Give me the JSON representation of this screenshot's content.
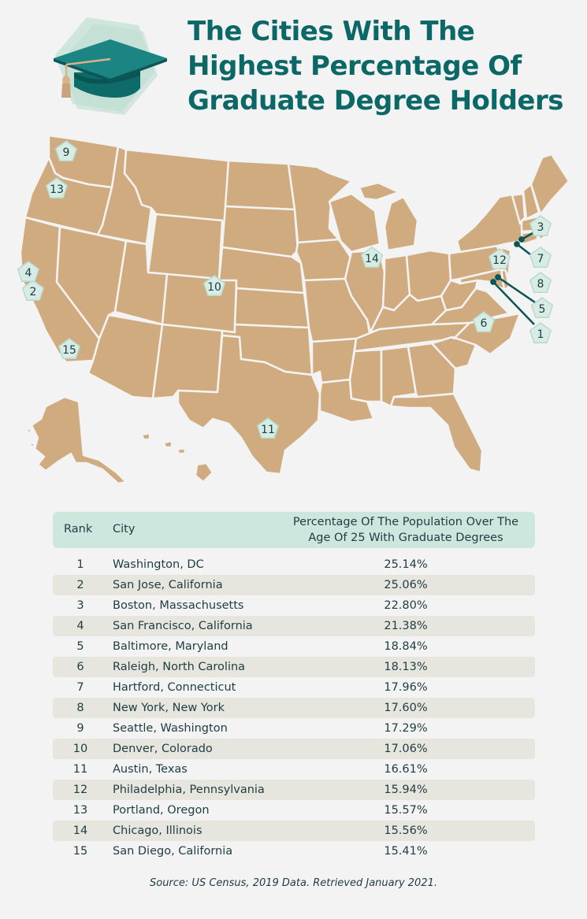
{
  "title": {
    "line1": "The Cities With The",
    "line2": "Highest Percentage Of",
    "line3": "Graduate Degree Holders"
  },
  "icons": {
    "cap": "graduation-cap-icon"
  },
  "colors": {
    "title": "#0c6866",
    "land": "#cfab7f",
    "marker_fill": "#d6ece4",
    "marker_stroke": "#b9d9cd",
    "table_header": "#cde6de",
    "row_alt": "#e6e6df"
  },
  "map_labels": [
    {
      "rank": "1",
      "city": "Washington, DC"
    },
    {
      "rank": "2",
      "city": "San Jose, California"
    },
    {
      "rank": "3",
      "city": "Boston, Massachusetts"
    },
    {
      "rank": "4",
      "city": "San Francisco, California"
    },
    {
      "rank": "5",
      "city": "Baltimore, Maryland"
    },
    {
      "rank": "6",
      "city": "Raleigh, North Carolina"
    },
    {
      "rank": "7",
      "city": "Hartford, Connecticut"
    },
    {
      "rank": "8",
      "city": "New York, New York"
    },
    {
      "rank": "9",
      "city": "Seattle, Washington"
    },
    {
      "rank": "10",
      "city": "Denver, Colorado"
    },
    {
      "rank": "11",
      "city": "Austin, Texas"
    },
    {
      "rank": "12",
      "city": "Philadelphia, Pennsylvania"
    },
    {
      "rank": "13",
      "city": "Portland, Oregon"
    },
    {
      "rank": "14",
      "city": "Chicago, Illinois"
    },
    {
      "rank": "15",
      "city": "San Diego, California"
    }
  ],
  "table": {
    "headers": {
      "rank": "Rank",
      "city": "City",
      "pct_line1": "Percentage Of The Population Over The",
      "pct_line2": "Age Of 25 With Graduate Degrees"
    },
    "rows": [
      {
        "rank": "1",
        "city": "Washington, DC",
        "pct": "25.14%"
      },
      {
        "rank": "2",
        "city": "San Jose, California",
        "pct": "25.06%"
      },
      {
        "rank": "3",
        "city": "Boston, Massachusetts",
        "pct": "22.80%"
      },
      {
        "rank": "4",
        "city": "San Francisco, California",
        "pct": "21.38%"
      },
      {
        "rank": "5",
        "city": "Baltimore, Maryland",
        "pct": "18.84%"
      },
      {
        "rank": "6",
        "city": "Raleigh, North Carolina",
        "pct": "18.13%"
      },
      {
        "rank": "7",
        "city": "Hartford, Connecticut",
        "pct": "17.96%"
      },
      {
        "rank": "8",
        "city": "New York, New York",
        "pct": "17.60%"
      },
      {
        "rank": "9",
        "city": "Seattle, Washington",
        "pct": "17.29%"
      },
      {
        "rank": "10",
        "city": "Denver, Colorado",
        "pct": "17.06%"
      },
      {
        "rank": "11",
        "city": "Austin, Texas",
        "pct": "16.61%"
      },
      {
        "rank": "12",
        "city": "Philadelphia, Pennsylvania",
        "pct": "15.94%"
      },
      {
        "rank": "13",
        "city": "Portland, Oregon",
        "pct": "15.57%"
      },
      {
        "rank": "14",
        "city": "Chicago, Illinois",
        "pct": "15.56%"
      },
      {
        "rank": "15",
        "city": "San Diego, California",
        "pct": "15.41%"
      }
    ]
  },
  "source": "Source: US Census, 2019 Data. Retrieved January 2021."
}
